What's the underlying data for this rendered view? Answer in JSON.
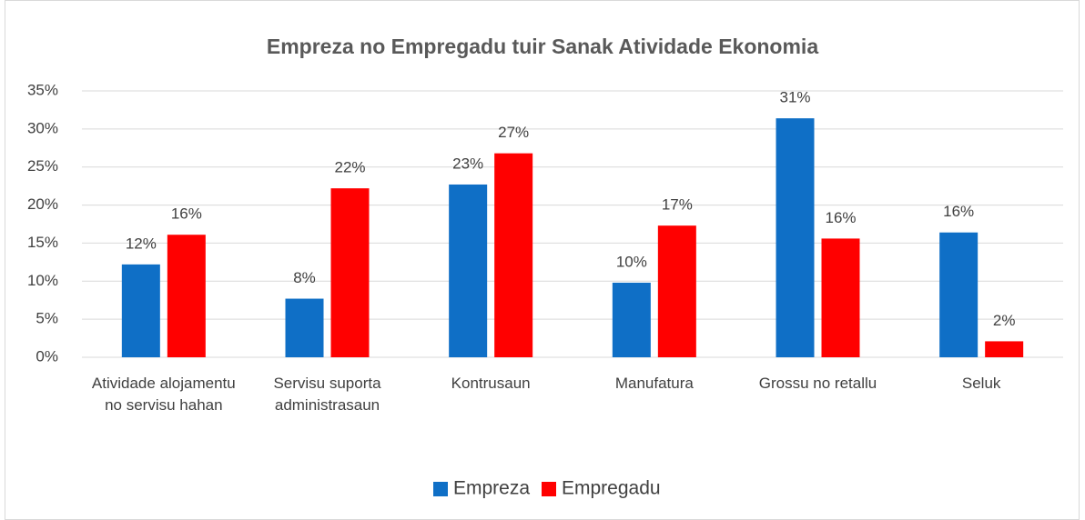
{
  "chart_data": {
    "type": "bar",
    "title": "Empreza no Empregadu tuir Sanak Atividade Ekonomia",
    "categories": [
      "Atividade alojamentu no servisu hahan",
      "Servisu suporta administrasaun",
      "Kontrusaun",
      "Manufatura",
      "Grossu no retallu",
      "Seluk"
    ],
    "series": [
      {
        "name": "Empreza",
        "color": "#0f6fc6",
        "values": [
          12.2,
          7.7,
          22.7,
          9.8,
          31.4,
          16.4
        ],
        "value_labels": [
          "12%",
          "8%",
          "23%",
          "10%",
          "31%",
          "16%"
        ]
      },
      {
        "name": "Empregadu",
        "color": "#ff0000",
        "values": [
          16.1,
          22.2,
          26.8,
          17.3,
          15.6,
          2.1
        ],
        "value_labels": [
          "16%",
          "22%",
          "27%",
          "17%",
          "16%",
          "2%"
        ]
      }
    ],
    "ylim": [
      0,
      35
    ],
    "yticks": [
      {
        "value": 0,
        "label": "0%"
      },
      {
        "value": 5,
        "label": "5%"
      },
      {
        "value": 10,
        "label": "10%"
      },
      {
        "value": 15,
        "label": "15%"
      },
      {
        "value": 20,
        "label": "20%"
      },
      {
        "value": 25,
        "label": "25%"
      },
      {
        "value": 30,
        "label": "30%"
      },
      {
        "value": 35,
        "label": "35%"
      }
    ],
    "grid": true,
    "legend": "bottom"
  }
}
